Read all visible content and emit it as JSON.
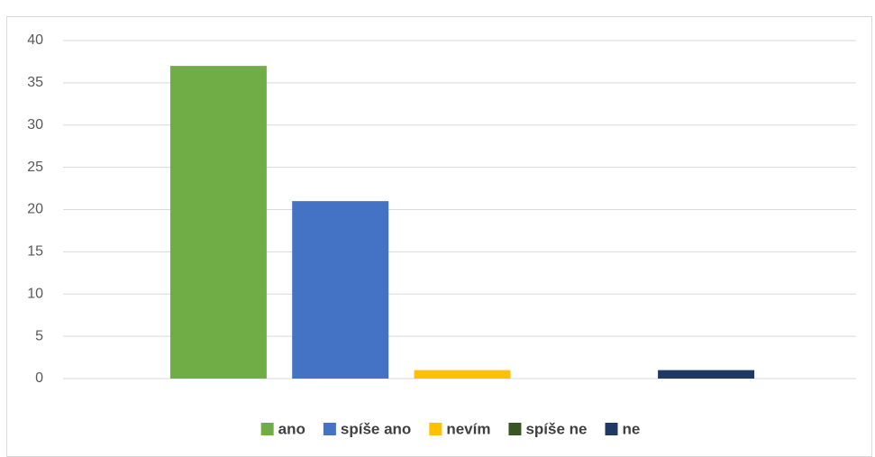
{
  "chart_data": {
    "type": "bar",
    "categories": [
      null
    ],
    "series": [
      {
        "name": "ano",
        "color": "#70ad47",
        "values": [
          37
        ]
      },
      {
        "name": "spíše ano",
        "color": "#4472c4",
        "values": [
          21
        ]
      },
      {
        "name": "nevím",
        "color": "#ffc000",
        "values": [
          1
        ]
      },
      {
        "name": "spíše ne",
        "color": "#375623",
        "values": [
          0
        ]
      },
      {
        "name": "ne",
        "color": "#203864",
        "values": [
          1
        ]
      }
    ],
    "ylim": [
      0,
      40
    ],
    "yticks": [
      0,
      5,
      10,
      15,
      20,
      25,
      30,
      35,
      40
    ],
    "grid": true,
    "legend": "bottom"
  }
}
